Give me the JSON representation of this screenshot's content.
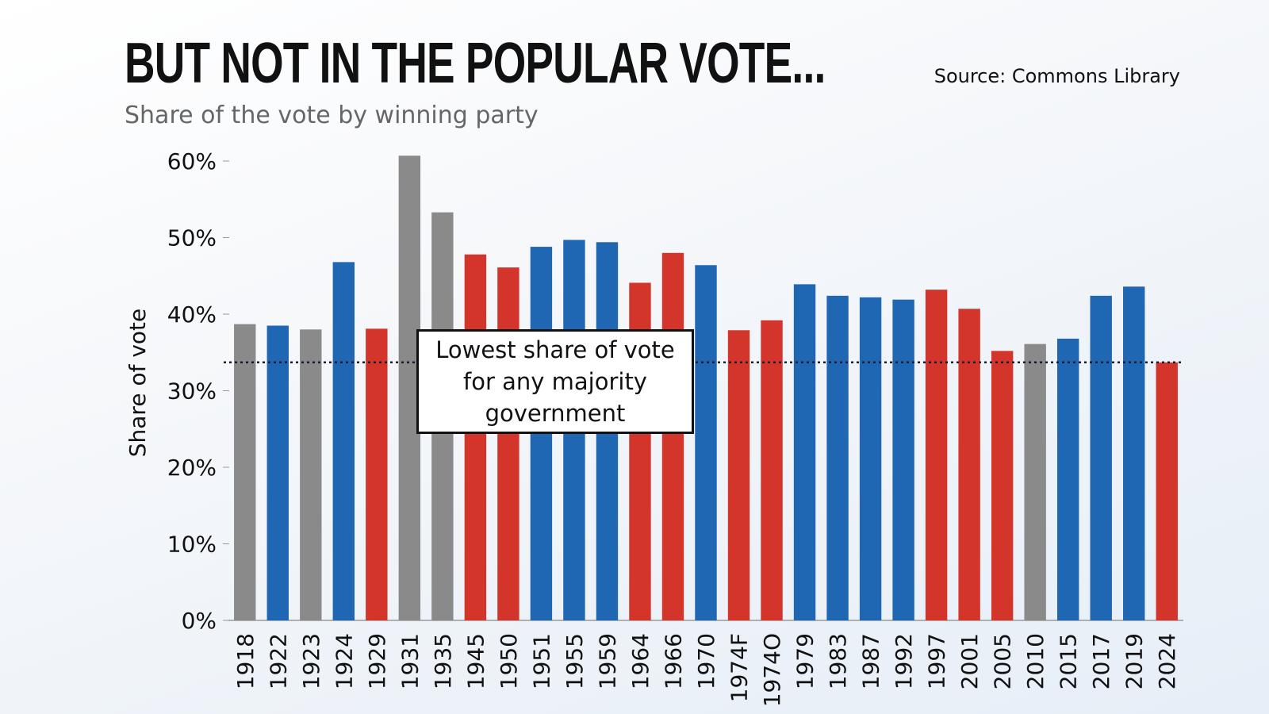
{
  "header": {
    "title": "BUT NOT IN THE POPULAR VOTE...",
    "subtitle": "Share of the vote by winning party",
    "source": "Source: Commons Library"
  },
  "annotation": {
    "text": "Lowest share of vote for any majority government"
  },
  "colors": {
    "conservative": "#1f66b3",
    "labour": "#d4352b",
    "coalition": "#8a8a8a"
  },
  "chart_data": {
    "type": "bar",
    "title": "BUT NOT IN THE POPULAR VOTE...",
    "subtitle": "Share of the vote by winning party",
    "ylabel": "Share of vote",
    "xlabel": "",
    "ylim": [
      0,
      60
    ],
    "yticks": [
      0,
      10,
      20,
      30,
      40,
      50,
      60
    ],
    "ytick_labels": [
      "0%",
      "10%",
      "20%",
      "30%",
      "40%",
      "50%",
      "60%"
    ],
    "categories": [
      "1918",
      "1922",
      "1923",
      "1924",
      "1929",
      "1931",
      "1935",
      "1945",
      "1950",
      "1951",
      "1955",
      "1959",
      "1964",
      "1966",
      "1970",
      "1974F",
      "1974O",
      "1979",
      "1983",
      "1987",
      "1992",
      "1997",
      "2001",
      "2005",
      "2010",
      "2015",
      "2017",
      "2019",
      "2024"
    ],
    "values": [
      38.7,
      38.5,
      38.0,
      46.8,
      38.1,
      60.7,
      53.3,
      47.8,
      46.1,
      48.8,
      49.7,
      49.4,
      44.1,
      48.0,
      46.4,
      37.9,
      39.2,
      43.9,
      42.4,
      42.2,
      41.9,
      43.2,
      40.7,
      35.2,
      36.1,
      36.8,
      42.4,
      43.6,
      33.7
    ],
    "bar_colors": [
      "coalition",
      "conservative",
      "coalition",
      "conservative",
      "labour",
      "coalition",
      "coalition",
      "labour",
      "labour",
      "conservative",
      "conservative",
      "conservative",
      "labour",
      "labour",
      "conservative",
      "labour",
      "labour",
      "conservative",
      "conservative",
      "conservative",
      "conservative",
      "labour",
      "labour",
      "labour",
      "coalition",
      "conservative",
      "conservative",
      "conservative",
      "labour"
    ],
    "reference_line": {
      "value": 33.7,
      "style": "dotted"
    },
    "grid": false
  }
}
